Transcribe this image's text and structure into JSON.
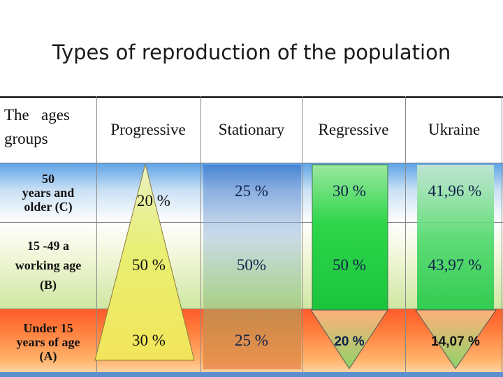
{
  "title": "Types of reproduction of the population",
  "header": {
    "groups_line1": "The   ages",
    "groups_line2": "groups",
    "col_progressive": "Progressive",
    "col_stationary": "Stationary",
    "col_regressive": "Regressive",
    "col_ukraine": "Ukraine"
  },
  "rows": [
    {
      "label_line1": "50",
      "label_line2": "years and",
      "label_line3": "older (C)",
      "progressive": "20 %",
      "stationary": "25 %",
      "regressive": "30 %",
      "ukraine": "41,96 %"
    },
    {
      "label_line1": "15 -49 a",
      "label_line2": "working age",
      "label_line3": "(B)",
      "progressive": "50 %",
      "stationary": "50%",
      "regressive": "50 %",
      "ukraine": "43,97 %"
    },
    {
      "label_line1": "Under 15",
      "label_line2": "years of age",
      "label_line3": "(A)",
      "progressive": "30 %",
      "stationary": "25 %",
      "regressive": "20 %",
      "ukraine": "14,07 %"
    }
  ],
  "colors": {
    "row_c_top": "#5ea3e6",
    "row_a_top": "#ff5a2a",
    "triangle_fill": "#e9f06a",
    "regressive_fill": "#2fd44a"
  }
}
